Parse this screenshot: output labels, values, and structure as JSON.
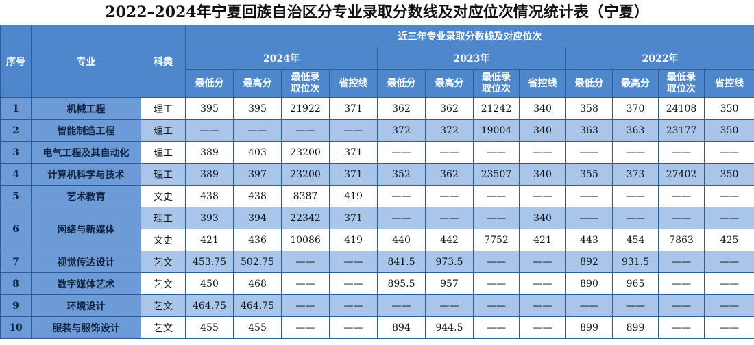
{
  "title": "2022–2024年宁夏回族自治区分专业录取分数线及对应位次情况统计表（宁夏）",
  "table": {
    "header": {
      "no": "序号",
      "major": "专业",
      "category": "科类",
      "group": "近三年专业录取分数线及对应位次",
      "years": [
        "2024年",
        "2023年",
        "2022年"
      ],
      "fields": [
        "最低分",
        "最高分",
        "最低录取位次",
        "省控线"
      ]
    },
    "rows": [
      {
        "no": "1",
        "major": "机械工程",
        "lines": [
          {
            "category": "理工",
            "values": [
              395,
              395,
              21922,
              371,
              362,
              362,
              21242,
              340,
              358,
              370,
              24108,
              350
            ]
          }
        ]
      },
      {
        "no": "2",
        "major": "智能制造工程",
        "lines": [
          {
            "category": "理工",
            "values": [
              "——",
              "——",
              "——",
              "——",
              372,
              372,
              19004,
              340,
              363,
              363,
              23177,
              350
            ]
          }
        ]
      },
      {
        "no": "3",
        "major": "电气工程及其自动化",
        "lines": [
          {
            "category": "理工",
            "values": [
              389,
              403,
              23200,
              371,
              "——",
              "——",
              "——",
              "——",
              "——",
              "——",
              "——",
              "——"
            ]
          }
        ]
      },
      {
        "no": "4",
        "major": "计算机科学与技术",
        "lines": [
          {
            "category": "理工",
            "values": [
              389,
              397,
              23200,
              371,
              352,
              362,
              23507,
              340,
              355,
              373,
              27402,
              350
            ]
          }
        ]
      },
      {
        "no": "5",
        "major": "艺术教育",
        "lines": [
          {
            "category": "文史",
            "values": [
              438,
              438,
              8387,
              419,
              "——",
              "——",
              "——",
              "——",
              "——",
              "——",
              "——",
              "——"
            ]
          }
        ]
      },
      {
        "no": "6",
        "major": "网络与新媒体",
        "lines": [
          {
            "category": "理工",
            "values": [
              393,
              394,
              22342,
              371,
              "——",
              "——",
              "——",
              340,
              "——",
              "——",
              "——",
              "——"
            ]
          },
          {
            "category": "文史",
            "values": [
              421,
              436,
              10086,
              419,
              440,
              442,
              7752,
              421,
              443,
              454,
              7863,
              425
            ]
          }
        ]
      },
      {
        "no": "7",
        "major": "视觉传达设计",
        "lines": [
          {
            "category": "艺文",
            "values": [
              453.75,
              502.75,
              "——",
              "——",
              841.5,
              973.5,
              "——",
              "——",
              892,
              931.5,
              "——",
              "——"
            ]
          }
        ]
      },
      {
        "no": "8",
        "major": "数字媒体艺术",
        "lines": [
          {
            "category": "艺文",
            "values": [
              450,
              468,
              "——",
              "——",
              895.5,
              957,
              "——",
              "——",
              890,
              965,
              "——",
              "——"
            ]
          }
        ]
      },
      {
        "no": "9",
        "major": "环境设计",
        "lines": [
          {
            "category": "艺文",
            "values": [
              464.75,
              464.75,
              "——",
              "——",
              "——",
              "——",
              "——",
              "——",
              "——",
              "——",
              "——",
              "——"
            ]
          }
        ]
      },
      {
        "no": "10",
        "major": "服装与服饰设计",
        "lines": [
          {
            "category": "艺文",
            "values": [
              455,
              455,
              "——",
              "——",
              894,
              944.5,
              "——",
              "——",
              899,
              899,
              "——",
              "——"
            ]
          }
        ]
      }
    ]
  }
}
